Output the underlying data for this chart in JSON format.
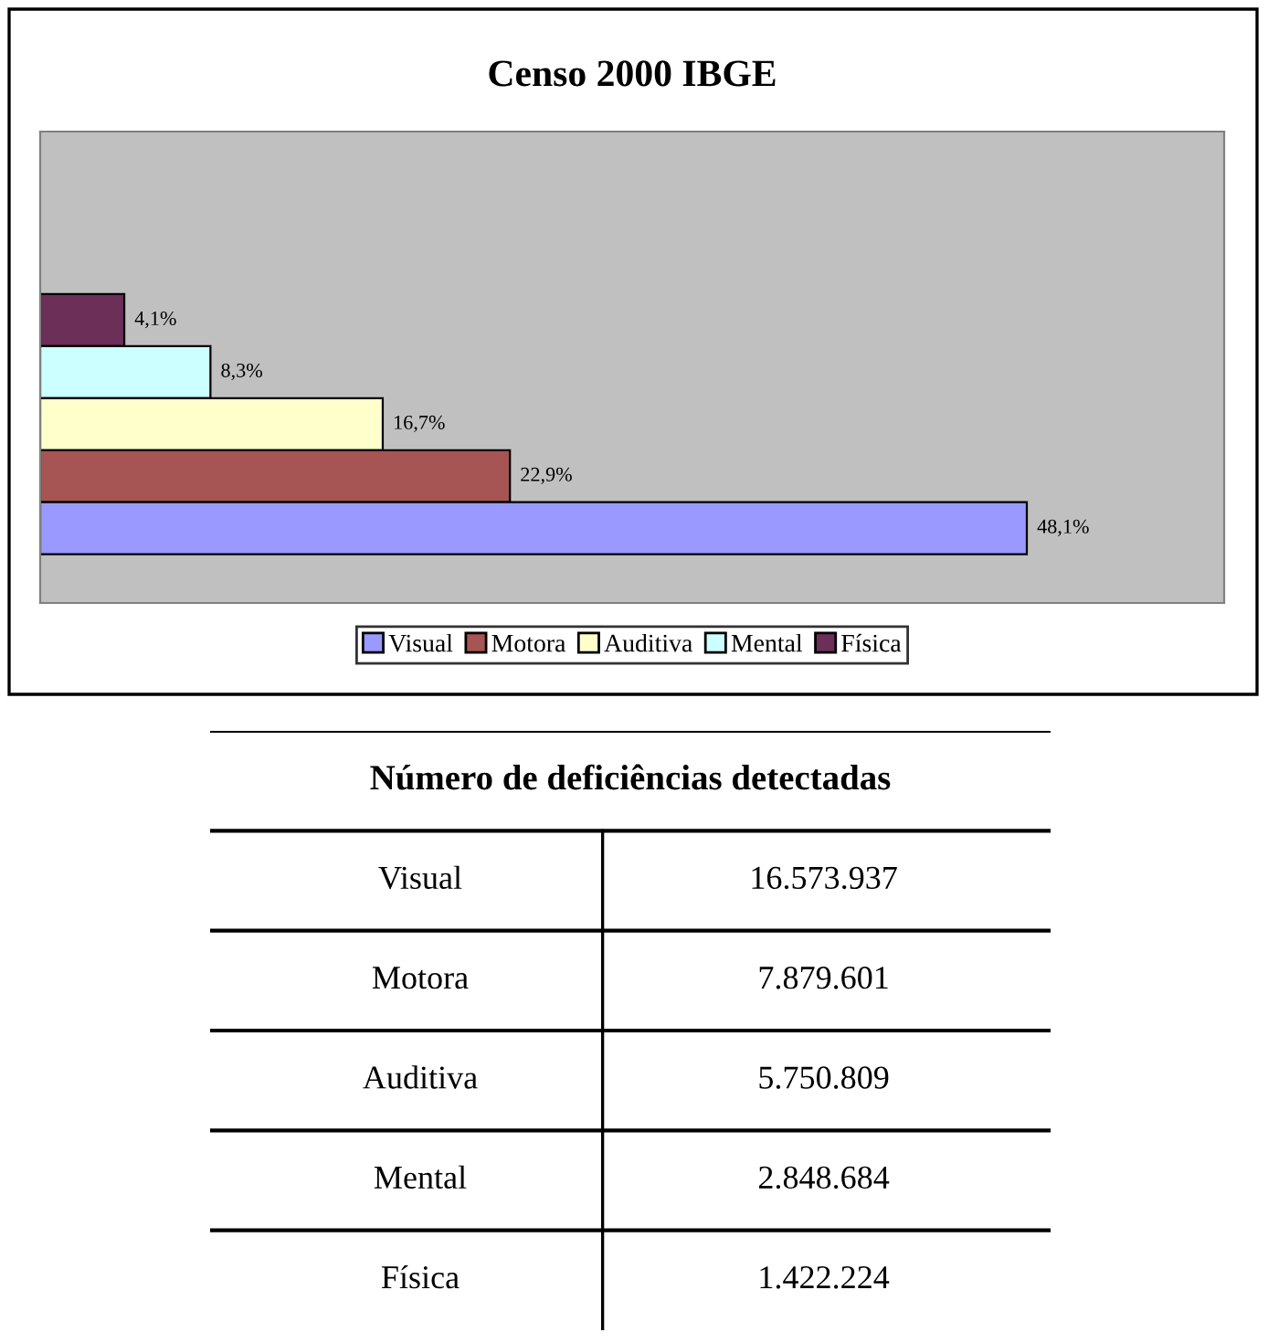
{
  "chart_data": [
    {
      "type": "bar",
      "orientation": "horizontal",
      "title": "Censo 2000 IBGE",
      "categories": [
        null
      ],
      "series": [
        {
          "name": "Física",
          "color": "#6b2f58",
          "values": [
            4.1
          ],
          "value_labels": [
            "4,1%"
          ]
        },
        {
          "name": "Mental",
          "color": "#ccffff",
          "values": [
            8.3
          ],
          "value_labels": [
            "8,3%"
          ]
        },
        {
          "name": "Auditiva",
          "color": "#ffffcc",
          "values": [
            16.7
          ],
          "value_labels": [
            "16,7%"
          ]
        },
        {
          "name": "Motora",
          "color": "#a65454",
          "values": [
            22.9
          ],
          "value_labels": [
            "22,9%"
          ]
        },
        {
          "name": "Visual",
          "color": "#9999ff",
          "values": [
            48.1
          ],
          "value_labels": [
            "48,1%"
          ]
        }
      ],
      "legend": "bottom"
    },
    {
      "type": "other",
      "title": "Número de deficiências detectadas",
      "categories": [
        "Visual",
        "Motora",
        "Auditiva",
        "Mental",
        "Física"
      ],
      "value_labels": [
        "16.573.937",
        "7.879.601",
        "5.750.809",
        "2.848.684",
        "1.422.224"
      ]
    }
  ]
}
